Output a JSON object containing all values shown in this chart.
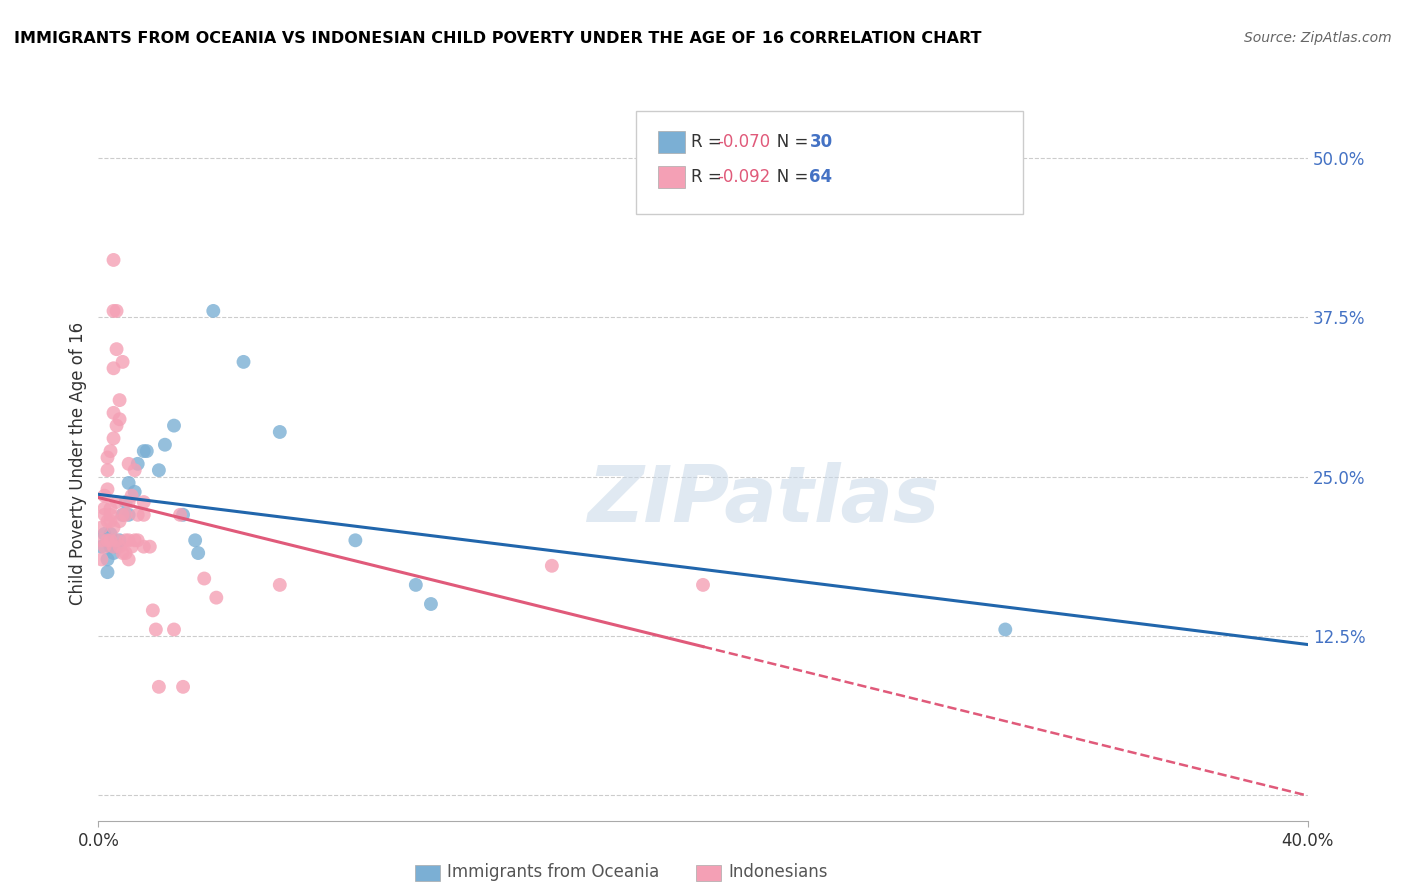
{
  "title": "IMMIGRANTS FROM OCEANIA VS INDONESIAN CHILD POVERTY UNDER THE AGE OF 16 CORRELATION CHART",
  "source": "Source: ZipAtlas.com",
  "ylabel": "Child Poverty Under the Age of 16",
  "xlim": [
    0.0,
    0.4
  ],
  "ylim": [
    -0.02,
    0.54
  ],
  "watermark": "ZIPatlas",
  "blue_color": "#7bafd4",
  "pink_color": "#f4a0b5",
  "blue_line_color": "#2166ac",
  "pink_line_color": "#e05a7a",
  "blue_points": [
    [
      0.001,
      0.195
    ],
    [
      0.002,
      0.205
    ],
    [
      0.003,
      0.185
    ],
    [
      0.003,
      0.175
    ],
    [
      0.004,
      0.195
    ],
    [
      0.004,
      0.205
    ],
    [
      0.005,
      0.19
    ],
    [
      0.006,
      0.195
    ],
    [
      0.007,
      0.2
    ],
    [
      0.008,
      0.22
    ],
    [
      0.009,
      0.23
    ],
    [
      0.01,
      0.245
    ],
    [
      0.01,
      0.22
    ],
    [
      0.012,
      0.238
    ],
    [
      0.013,
      0.26
    ],
    [
      0.015,
      0.27
    ],
    [
      0.016,
      0.27
    ],
    [
      0.02,
      0.255
    ],
    [
      0.022,
      0.275
    ],
    [
      0.025,
      0.29
    ],
    [
      0.028,
      0.22
    ],
    [
      0.032,
      0.2
    ],
    [
      0.033,
      0.19
    ],
    [
      0.038,
      0.38
    ],
    [
      0.048,
      0.34
    ],
    [
      0.06,
      0.285
    ],
    [
      0.085,
      0.2
    ],
    [
      0.105,
      0.165
    ],
    [
      0.11,
      0.15
    ],
    [
      0.3,
      0.13
    ]
  ],
  "pink_points": [
    [
      0.001,
      0.185
    ],
    [
      0.001,
      0.2
    ],
    [
      0.001,
      0.21
    ],
    [
      0.002,
      0.195
    ],
    [
      0.002,
      0.22
    ],
    [
      0.002,
      0.225
    ],
    [
      0.002,
      0.235
    ],
    [
      0.003,
      0.2
    ],
    [
      0.003,
      0.215
    ],
    [
      0.003,
      0.24
    ],
    [
      0.003,
      0.255
    ],
    [
      0.003,
      0.265
    ],
    [
      0.004,
      0.2
    ],
    [
      0.004,
      0.215
    ],
    [
      0.004,
      0.22
    ],
    [
      0.004,
      0.225
    ],
    [
      0.004,
      0.27
    ],
    [
      0.005,
      0.195
    ],
    [
      0.005,
      0.21
    ],
    [
      0.005,
      0.28
    ],
    [
      0.005,
      0.3
    ],
    [
      0.005,
      0.335
    ],
    [
      0.005,
      0.38
    ],
    [
      0.005,
      0.42
    ],
    [
      0.006,
      0.2
    ],
    [
      0.006,
      0.23
    ],
    [
      0.006,
      0.29
    ],
    [
      0.006,
      0.35
    ],
    [
      0.006,
      0.38
    ],
    [
      0.007,
      0.195
    ],
    [
      0.007,
      0.215
    ],
    [
      0.007,
      0.295
    ],
    [
      0.007,
      0.31
    ],
    [
      0.008,
      0.19
    ],
    [
      0.008,
      0.22
    ],
    [
      0.008,
      0.34
    ],
    [
      0.009,
      0.19
    ],
    [
      0.009,
      0.2
    ],
    [
      0.009,
      0.22
    ],
    [
      0.01,
      0.185
    ],
    [
      0.01,
      0.2
    ],
    [
      0.01,
      0.23
    ],
    [
      0.01,
      0.26
    ],
    [
      0.011,
      0.195
    ],
    [
      0.011,
      0.235
    ],
    [
      0.012,
      0.2
    ],
    [
      0.012,
      0.255
    ],
    [
      0.013,
      0.2
    ],
    [
      0.013,
      0.22
    ],
    [
      0.015,
      0.195
    ],
    [
      0.015,
      0.22
    ],
    [
      0.015,
      0.23
    ],
    [
      0.017,
      0.195
    ],
    [
      0.018,
      0.145
    ],
    [
      0.019,
      0.13
    ],
    [
      0.02,
      0.085
    ],
    [
      0.025,
      0.13
    ],
    [
      0.027,
      0.22
    ],
    [
      0.028,
      0.085
    ],
    [
      0.035,
      0.17
    ],
    [
      0.039,
      0.155
    ],
    [
      0.06,
      0.165
    ],
    [
      0.15,
      0.18
    ],
    [
      0.2,
      0.165
    ]
  ]
}
